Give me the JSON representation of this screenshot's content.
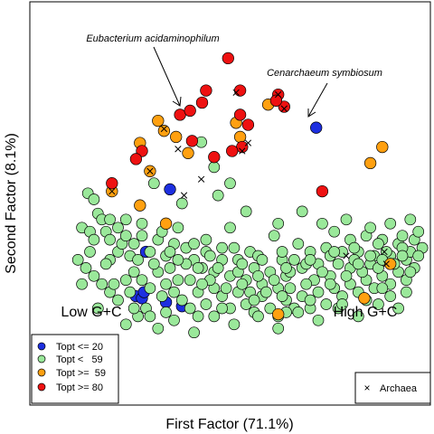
{
  "chart_data": {
    "type": "scatter",
    "title": "",
    "xlabel": "First Factor (71.1%)",
    "ylabel": "Second Factor (8.1%)",
    "xlim": [
      0,
      100
    ],
    "ylim": [
      0,
      100
    ],
    "region_labels": {
      "left": "Low G+C",
      "right": "High G+C"
    },
    "annotations": [
      {
        "text": "Eubacterium acidaminophilum",
        "x": 48.5,
        "y": 66.0
      },
      {
        "text": "Cenarchaeum symbiosum",
        "x": 76.0,
        "y": 68.8
      }
    ],
    "legend": {
      "position": "bottom-left",
      "entries": [
        {
          "key": "cold",
          "label": "Topt <= 20",
          "color": "#1d2fe0"
        },
        {
          "key": "meso",
          "label": "Topt <   59",
          "color": "#9ae89a"
        },
        {
          "key": "thermo",
          "label": "Topt >=  59",
          "color": "#ffa010"
        },
        {
          "key": "hyper",
          "label": "Topt >= 80",
          "color": "#ee1111"
        }
      ]
    },
    "marker_legend": {
      "position": "bottom-right",
      "symbol": "×",
      "label": "Archaea"
    },
    "series": [
      {
        "key": "cold",
        "points": [
          [
            29,
            38
          ],
          [
            35,
            53.5
          ],
          [
            26.5,
            27
          ],
          [
            28,
            26.5
          ],
          [
            28.5,
            28
          ],
          [
            34,
            25.5
          ],
          [
            38,
            24.5
          ],
          [
            71.5,
            68.8
          ]
        ]
      },
      {
        "key": "meso",
        "points": [
          [
            42.8,
            65.2
          ],
          [
            14.5,
            52.5
          ],
          [
            16,
            51
          ],
          [
            17,
            47.5
          ],
          [
            18,
            46
          ],
          [
            13,
            44
          ],
          [
            15,
            43
          ],
          [
            16,
            41
          ],
          [
            19,
            43
          ],
          [
            20,
            41
          ],
          [
            22,
            44
          ],
          [
            24,
            46
          ],
          [
            26,
            40
          ],
          [
            28,
            42
          ],
          [
            30,
            38
          ],
          [
            32,
            41
          ],
          [
            34,
            37
          ],
          [
            36,
            40
          ],
          [
            37,
            44
          ],
          [
            39,
            39
          ],
          [
            41,
            36
          ],
          [
            43,
            34
          ],
          [
            44,
            38
          ],
          [
            46,
            33
          ],
          [
            48,
            36
          ],
          [
            50,
            32
          ],
          [
            52,
            36
          ],
          [
            54,
            31
          ],
          [
            56,
            34
          ],
          [
            58,
            30
          ],
          [
            60,
            33
          ],
          [
            62,
            29
          ],
          [
            64,
            32
          ],
          [
            66,
            36
          ],
          [
            68,
            34
          ],
          [
            70,
            38
          ],
          [
            72,
            35
          ],
          [
            74,
            39
          ],
          [
            76,
            43
          ],
          [
            78,
            38
          ],
          [
            80,
            41
          ],
          [
            82,
            38
          ],
          [
            84,
            42
          ],
          [
            86,
            37
          ],
          [
            88,
            41
          ],
          [
            90,
            37
          ],
          [
            92,
            40
          ],
          [
            94,
            36
          ],
          [
            96,
            41
          ],
          [
            98,
            39
          ],
          [
            12,
            36
          ],
          [
            14,
            34
          ],
          [
            16,
            32
          ],
          [
            18,
            30
          ],
          [
            20,
            28
          ],
          [
            22,
            26
          ],
          [
            24,
            31
          ],
          [
            26,
            33
          ],
          [
            28,
            31
          ],
          [
            30,
            29
          ],
          [
            32,
            33
          ],
          [
            34,
            30
          ],
          [
            36,
            28
          ],
          [
            38,
            26
          ],
          [
            40,
            31
          ],
          [
            42,
            28
          ],
          [
            44,
            25
          ],
          [
            46,
            29
          ],
          [
            48,
            27
          ],
          [
            50,
            24
          ],
          [
            52,
            28
          ],
          [
            54,
            25
          ],
          [
            56,
            23
          ],
          [
            58,
            27
          ],
          [
            60,
            24
          ],
          [
            62,
            22
          ],
          [
            64,
            26
          ],
          [
            66,
            24
          ],
          [
            68,
            27
          ],
          [
            70,
            24
          ],
          [
            72,
            28
          ],
          [
            74,
            25
          ],
          [
            76,
            29
          ],
          [
            78,
            27
          ],
          [
            80,
            30
          ],
          [
            82,
            28
          ],
          [
            84,
            31
          ],
          [
            86,
            29
          ],
          [
            88,
            32
          ],
          [
            90,
            30
          ],
          [
            92,
            33
          ],
          [
            94,
            31
          ],
          [
            96,
            34
          ],
          [
            24,
            20
          ],
          [
            27,
            22
          ],
          [
            32,
            19
          ],
          [
            36,
            21
          ],
          [
            41,
            18
          ],
          [
            46,
            22
          ],
          [
            51,
            20
          ],
          [
            57,
            22
          ],
          [
            62,
            19
          ],
          [
            67,
            23
          ],
          [
            72,
            21
          ],
          [
            77,
            24
          ],
          [
            82,
            22
          ],
          [
            87,
            25
          ],
          [
            92,
            24
          ],
          [
            44,
            41
          ],
          [
            50,
            44
          ],
          [
            55,
            38
          ],
          [
            61,
            42
          ],
          [
            67,
            40
          ],
          [
            73,
            45
          ],
          [
            79,
            46
          ],
          [
            85,
            44
          ],
          [
            90,
            45
          ],
          [
            95,
            46
          ],
          [
            31,
            55
          ],
          [
            38,
            50
          ],
          [
            47,
            52
          ],
          [
            54,
            48
          ],
          [
            62,
            45
          ],
          [
            68,
            48
          ],
          [
            46,
            59
          ],
          [
            50,
            55
          ],
          [
            20,
            36
          ],
          [
            25,
            37
          ],
          [
            35,
            34
          ],
          [
            45,
            31
          ],
          [
            55,
            28
          ],
          [
            65,
            29
          ],
          [
            75,
            32
          ],
          [
            85,
            35
          ],
          [
            95,
            38
          ],
          [
            22,
            38
          ],
          [
            42,
            22
          ],
          [
            52,
            33
          ],
          [
            63,
            36
          ],
          [
            71,
            31
          ],
          [
            80,
            34
          ],
          [
            88,
            29
          ],
          [
            13,
            30
          ],
          [
            17,
            24
          ],
          [
            21,
            30
          ],
          [
            25,
            28
          ],
          [
            29,
            24
          ],
          [
            33,
            27
          ],
          [
            37,
            31
          ],
          [
            39,
            35
          ],
          [
            43,
            30
          ],
          [
            47,
            34
          ],
          [
            49,
            29
          ],
          [
            53,
            30
          ],
          [
            57,
            32
          ],
          [
            59,
            28
          ],
          [
            61,
            31
          ],
          [
            63,
            27
          ],
          [
            65,
            33
          ],
          [
            69,
            30
          ],
          [
            73,
            33
          ],
          [
            75,
            30
          ],
          [
            77,
            35
          ],
          [
            79,
            32
          ],
          [
            81,
            36
          ],
          [
            83,
            33
          ],
          [
            85,
            37
          ],
          [
            87,
            34
          ],
          [
            89,
            38
          ],
          [
            91,
            35
          ],
          [
            93,
            39
          ],
          [
            95,
            33
          ],
          [
            97,
            37
          ],
          [
            15,
            38
          ],
          [
            19,
            35
          ],
          [
            23,
            40
          ],
          [
            27,
            36
          ],
          [
            31,
            35
          ],
          [
            35,
            38
          ],
          [
            41,
            40
          ],
          [
            45,
            37
          ],
          [
            51,
            39
          ],
          [
            57,
            37
          ],
          [
            63,
            38
          ],
          [
            69,
            35
          ],
          [
            75,
            37
          ],
          [
            81,
            39
          ],
          [
            87,
            40
          ],
          [
            93,
            42
          ],
          [
            97,
            43
          ],
          [
            26,
            24
          ],
          [
            30,
            22
          ],
          [
            34,
            23
          ],
          [
            40,
            24
          ],
          [
            48,
            24
          ],
          [
            56,
            26
          ],
          [
            64,
            23
          ],
          [
            70,
            26
          ],
          [
            78,
            25
          ],
          [
            84,
            26
          ],
          [
            90,
            27
          ],
          [
            94,
            28
          ],
          [
            20,
            46
          ],
          [
            24,
            42
          ],
          [
            28,
            45
          ],
          [
            33,
            43
          ],
          [
            37,
            36
          ],
          [
            42,
            34
          ],
          [
            48,
            39
          ],
          [
            53,
            35
          ],
          [
            58,
            36
          ],
          [
            64,
            34
          ],
          [
            70,
            36
          ],
          [
            76,
            38
          ],
          [
            82,
            35
          ],
          [
            88,
            36
          ],
          [
            93,
            37
          ]
        ]
      },
      {
        "key": "thermo",
        "points": [
          [
            32,
            70.5
          ],
          [
            33.5,
            68
          ],
          [
            27.5,
            65
          ],
          [
            36.5,
            66.5
          ],
          [
            39.5,
            62.5
          ],
          [
            30,
            58
          ],
          [
            20.5,
            53
          ],
          [
            27.5,
            49.5
          ],
          [
            34,
            45
          ],
          [
            51.5,
            70
          ],
          [
            52.5,
            66.5
          ],
          [
            59.5,
            74.5
          ],
          [
            88,
            64
          ],
          [
            85,
            60
          ],
          [
            83.5,
            26.5
          ],
          [
            62,
            22.5
          ],
          [
            90,
            35
          ]
        ]
      },
      {
        "key": "hyper",
        "points": [
          [
            49.5,
            86
          ],
          [
            52.5,
            78
          ],
          [
            44,
            78
          ],
          [
            43,
            75
          ],
          [
            37.5,
            72
          ],
          [
            40.5,
            65.5
          ],
          [
            52.5,
            72
          ],
          [
            54.5,
            69.5
          ],
          [
            62,
            77
          ],
          [
            63.5,
            74
          ],
          [
            61.5,
            75.5
          ],
          [
            53,
            64
          ],
          [
            50.5,
            63
          ],
          [
            46,
            61.5
          ],
          [
            28,
            63
          ],
          [
            26.5,
            61
          ],
          [
            40,
            73
          ],
          [
            20.5,
            55
          ],
          [
            73,
            53
          ]
        ]
      }
    ],
    "archaea": [
      [
        51.5,
        77.5
      ],
      [
        62,
        77
      ],
      [
        63.5,
        73.5
      ],
      [
        53,
        63
      ],
      [
        54.5,
        65
      ],
      [
        37,
        63.5
      ],
      [
        33.5,
        68.5
      ],
      [
        42.8,
        56
      ],
      [
        30,
        58
      ],
      [
        20.5,
        53
      ],
      [
        38.5,
        52
      ],
      [
        88.5,
        38
      ],
      [
        89,
        35
      ],
      [
        79,
        37
      ]
    ]
  }
}
